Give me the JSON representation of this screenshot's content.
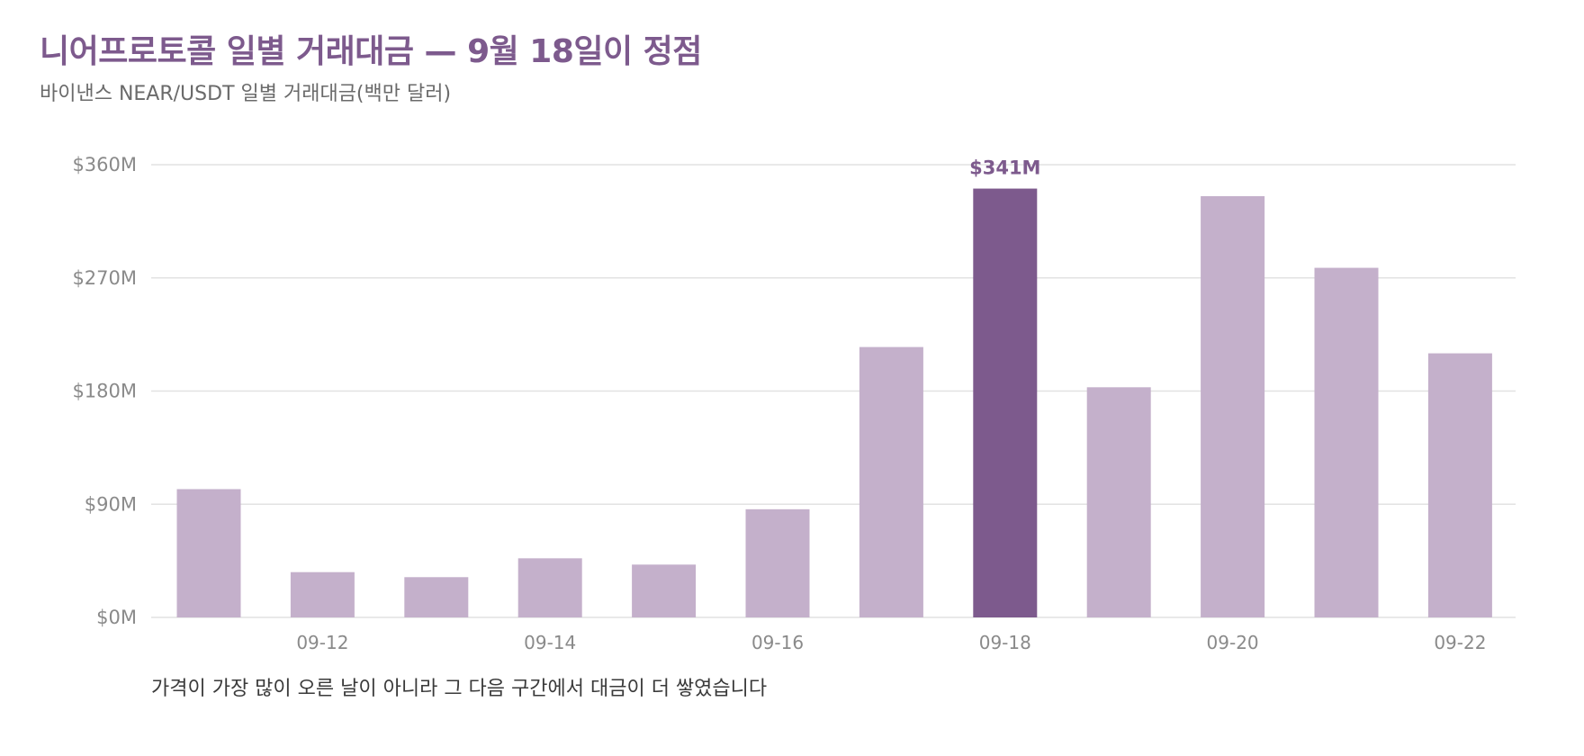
{
  "header": {
    "title": "니어프로토콜 일별 거래대금 — 9월 18일이 정점",
    "subtitle": "바이낸스 NEAR/USDT 일별 거래대금(백만 달러)"
  },
  "footer": {
    "note": "가격이 가장 많이 오른 날이 아니라 그 다음 구간에서 대금이 더 쌓였습니다"
  },
  "colors": {
    "bar": "#c4b0cb",
    "highlight": "#7d5a8d",
    "grid": "#e2e2e2",
    "axis_text": "#8a8a8a"
  },
  "chart_data": {
    "type": "bar",
    "categories": [
      "09-11",
      "09-12",
      "09-13",
      "09-14",
      "09-15",
      "09-16",
      "09-17",
      "09-18",
      "09-19",
      "09-20",
      "09-21",
      "09-22"
    ],
    "x_tick_labels": [
      "09-12",
      "09-14",
      "09-16",
      "09-18",
      "09-20",
      "09-22"
    ],
    "values": [
      102,
      36,
      32,
      47,
      42,
      86,
      215,
      341,
      183,
      335,
      278,
      210
    ],
    "ylim": [
      0,
      360
    ],
    "y_ticks": [
      0,
      90,
      180,
      270,
      360
    ],
    "y_tick_labels": [
      "$0M",
      "$90M",
      "$180M",
      "$270M",
      "$360M"
    ],
    "highlight_category": "09-18",
    "annotations": [
      {
        "category": "09-18",
        "label": "$341M"
      }
    ],
    "grid": true,
    "legend": "none"
  }
}
